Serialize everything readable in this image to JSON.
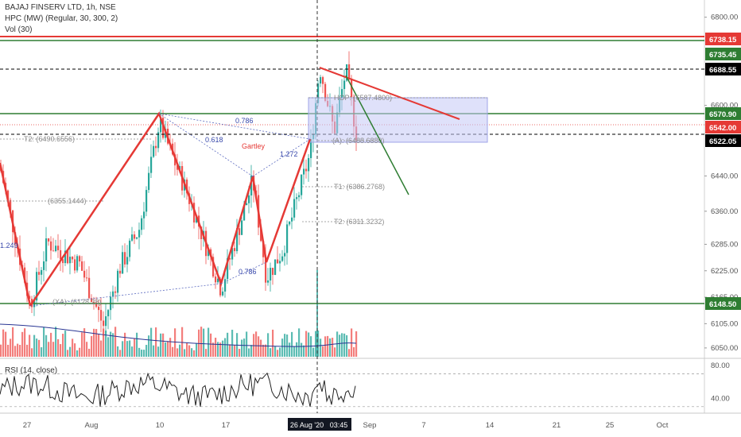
{
  "header": {
    "title": "BAJAJ FINSERV LTD, 1h, NSE",
    "indicator": "HPC (MW) (Regular, 30, 300, 2)",
    "volume": "Vol (30)",
    "rsi": "RSI (14, close)"
  },
  "chart_data": {
    "type": "candlestick",
    "ylim": [
      6030,
      6830
    ],
    "price_ticks": [
      "6800.00",
      "6735.45",
      "6600.00",
      "6522.05",
      "6440.00",
      "6360.00",
      "6285.00",
      "6225.00",
      "6165.00",
      "6105.00",
      "6050.00"
    ],
    "x_ticks": [
      "27",
      "Aug",
      "10",
      "17",
      "26 Aug '20",
      "03:45",
      "Sep",
      "7",
      "14",
      "21",
      "25",
      "Oct"
    ],
    "tagged_levels": [
      {
        "label": "6738.15",
        "color": "#e53935"
      },
      {
        "label": "6735.45",
        "color": "#2e7d32"
      },
      {
        "label": "6688.55",
        "color": "#000000"
      },
      {
        "label": "6570.90",
        "color": "#2e7d32"
      },
      {
        "label": "6542.00",
        "color": "#e53935"
      },
      {
        "label": "6522.05",
        "color": "#000000"
      },
      {
        "label": "6148.50",
        "color": "#2e7d32"
      }
    ],
    "pattern": {
      "name": "Gartley",
      "ratios": [
        "0.786",
        "0.618",
        "1.272",
        "0.786"
      ]
    },
    "annotations": [
      "T2: (6490.6556)",
      "(6355.1444)",
      "T1: (6386.2768)",
      "T2: (6311.3232)",
      "HOP: (6587.4800)",
      "(A): (6488.6880)",
      "(XA): (6128.28)",
      "1.249"
    ],
    "rsi": {
      "ylim": [
        25,
        85
      ],
      "ticks": [
        "80.00",
        "40.00"
      ]
    },
    "colors": {
      "up": "#26a69a",
      "down": "#ef5350",
      "pattern_line": "#e53935",
      "support": "#2e7d32",
      "resistance": "#e53935",
      "zone": "#c5c8f5"
    }
  }
}
